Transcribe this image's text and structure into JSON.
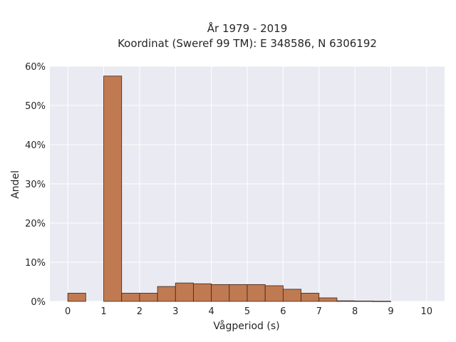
{
  "chart_data": {
    "type": "bar",
    "title_line1": "År 1979 - 2019",
    "title_line2": "Koordinat (Sweref 99 TM): E 348586, N 6306192",
    "xlabel": "Vågperiod (s)",
    "ylabel": "Andel",
    "xlim": [
      -0.5,
      10.5
    ],
    "ylim": [
      0,
      60
    ],
    "x_ticks": [
      0,
      1,
      2,
      3,
      4,
      5,
      6,
      7,
      8,
      9,
      10
    ],
    "y_ticks": [
      0,
      10,
      20,
      30,
      40,
      50,
      60
    ],
    "y_tick_labels": [
      "0%",
      "10%",
      "20%",
      "30%",
      "40%",
      "50%",
      "60%"
    ],
    "bin_width": 0.5,
    "bins": [
      {
        "start": 0.0,
        "value": 2.1
      },
      {
        "start": 0.5,
        "value": 0.0
      },
      {
        "start": 1.0,
        "value": 57.5
      },
      {
        "start": 1.5,
        "value": 2.1
      },
      {
        "start": 2.0,
        "value": 2.1
      },
      {
        "start": 2.5,
        "value": 3.8
      },
      {
        "start": 3.0,
        "value": 4.7
      },
      {
        "start": 3.5,
        "value": 4.5
      },
      {
        "start": 4.0,
        "value": 4.3
      },
      {
        "start": 4.5,
        "value": 4.3
      },
      {
        "start": 5.0,
        "value": 4.3
      },
      {
        "start": 5.5,
        "value": 4.0
      },
      {
        "start": 6.0,
        "value": 3.1
      },
      {
        "start": 6.5,
        "value": 2.1
      },
      {
        "start": 7.0,
        "value": 0.9
      },
      {
        "start": 7.5,
        "value": 0.15
      },
      {
        "start": 8.0,
        "value": 0.1
      },
      {
        "start": 8.5,
        "value": 0.05
      },
      {
        "start": 9.0,
        "value": 0.0
      },
      {
        "start": 9.5,
        "value": 0.0
      }
    ],
    "grid": true,
    "colors": {
      "plot_background": "#eaeaf2",
      "grid": "#ffffff",
      "bar_fill": "#c07a52",
      "bar_edge": "#3d2518"
    }
  }
}
